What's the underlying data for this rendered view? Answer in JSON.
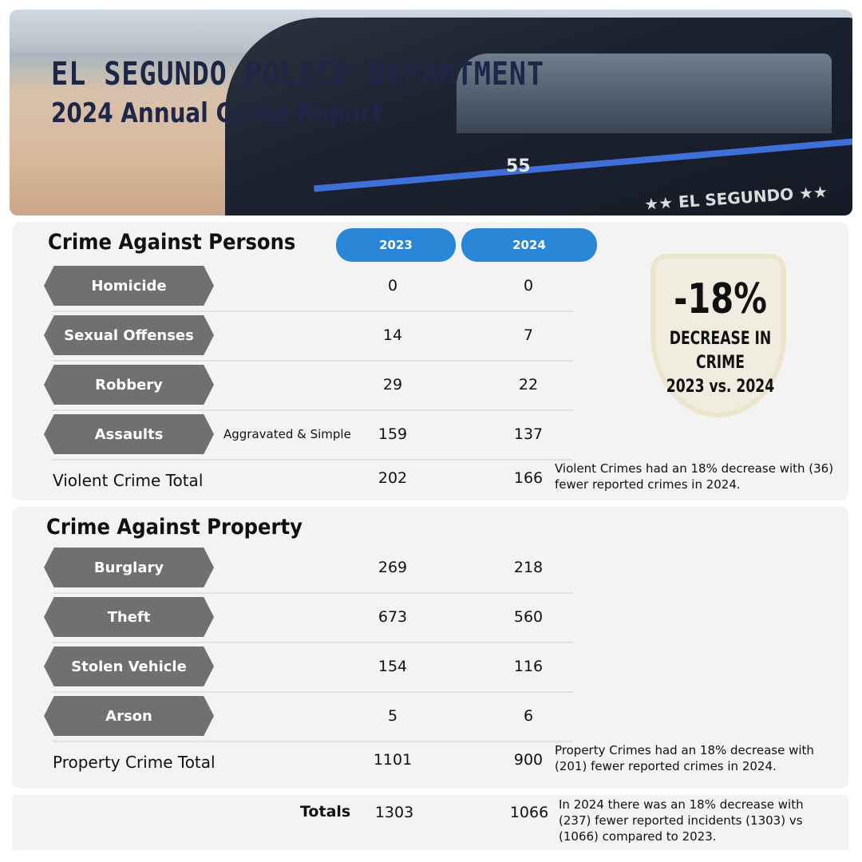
{
  "header": {
    "title": "EL SEGUNDO POLICE DEPARTMENT",
    "subtitle": "2024 Annual Crime Report",
    "car_number": "55",
    "car_text": "★★ EL SEGUNDO ★★"
  },
  "years": [
    "2023",
    "2024"
  ],
  "persons": {
    "title": "Crime Against Persons",
    "rows": [
      {
        "label": "Homicide",
        "v2023": "0",
        "v2024": "0"
      },
      {
        "label": "Sexual Offenses",
        "v2023": "14",
        "v2024": "7"
      },
      {
        "label": "Robbery",
        "v2023": "29",
        "v2024": "22"
      },
      {
        "label": "Assaults",
        "sub": "Aggravated & Simple",
        "v2023": "159",
        "v2024": "137"
      }
    ],
    "total": {
      "label": "Violent Crime Total",
      "v2023": "202",
      "v2024": "166",
      "note": "Violent Crimes had an 18% decrease with (36) fewer reported crimes in 2024."
    }
  },
  "summary": {
    "percent": "-18%",
    "line1": "DECREASE IN CRIME",
    "line2": "2023 vs. 2024"
  },
  "property": {
    "title": "Crime Against Property",
    "rows": [
      {
        "label": "Burglary",
        "v2023": "269",
        "v2024": "218"
      },
      {
        "label": "Theft",
        "v2023": "673",
        "v2024": "560"
      },
      {
        "label": "Stolen Vehicle",
        "v2023": "154",
        "v2024": "116"
      },
      {
        "label": "Arson",
        "v2023": "5",
        "v2024": "6"
      }
    ],
    "total": {
      "label": "Property Crime Total",
      "v2023": "1101",
      "v2024": "900",
      "note": "Property Crimes had an 18% decrease with (201) fewer reported crimes in 2024."
    }
  },
  "totals": {
    "label": "Totals",
    "v2023": "1303",
    "v2024": "1066",
    "note": "In 2024 there was an 18% decrease with (237) fewer reported incidents (1303) vs (1066) compared to 2023."
  },
  "colors": {
    "accent": "#2a87d8",
    "label_bg": "#707070",
    "title": "#1e2747",
    "panel": "#f3f3f3"
  }
}
